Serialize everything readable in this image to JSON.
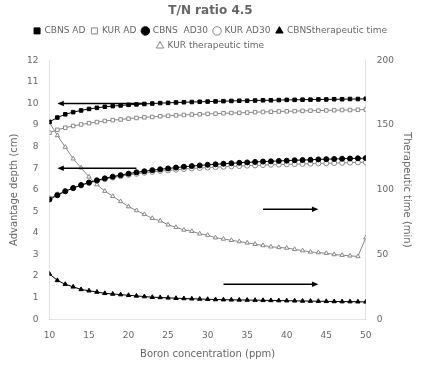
{
  "chart_data": {
    "type": "line",
    "title": "T/N ratio 4.5",
    "x_label": "Boron concentration (ppm)",
    "y_label": "Advantage depth (cm)",
    "y2_label": "Therapeutic time (min)",
    "x": [
      10,
      11,
      12,
      13,
      14,
      15,
      16,
      17,
      18,
      19,
      20,
      21,
      22,
      23,
      24,
      25,
      26,
      27,
      28,
      29,
      30,
      31,
      32,
      33,
      34,
      35,
      36,
      37,
      38,
      39,
      40,
      41,
      42,
      43,
      44,
      45,
      46,
      47,
      48,
      49,
      50
    ],
    "series": [
      {
        "name": "CBNS AD",
        "color": "#000000",
        "marker": "square",
        "axis": "y",
        "values": [
          9.15,
          9.35,
          9.5,
          9.6,
          9.68,
          9.75,
          9.8,
          9.85,
          9.88,
          9.91,
          9.94,
          9.96,
          9.98,
          10.0,
          10.02,
          10.03,
          10.05,
          10.06,
          10.07,
          10.08,
          10.09,
          10.1,
          10.11,
          10.12,
          10.13,
          10.13,
          10.14,
          10.15,
          10.15,
          10.16,
          10.17,
          10.17,
          10.18,
          10.18,
          10.19,
          10.19,
          10.2,
          10.2,
          10.21,
          10.21,
          10.22
        ]
      },
      {
        "name": "KUR AD",
        "color": "#888888",
        "marker": "open-square",
        "axis": "y",
        "values": [
          8.65,
          8.78,
          8.88,
          8.96,
          9.03,
          9.09,
          9.14,
          9.19,
          9.23,
          9.26,
          9.3,
          9.33,
          9.36,
          9.38,
          9.41,
          9.43,
          9.45,
          9.47,
          9.49,
          9.5,
          9.52,
          9.53,
          9.55,
          9.56,
          9.57,
          9.58,
          9.6,
          9.61,
          9.62,
          9.63,
          9.64,
          9.65,
          9.66,
          9.67,
          9.67,
          9.68,
          9.69,
          9.7,
          9.7,
          9.71,
          9.72
        ]
      },
      {
        "name": "CBNS  AD30",
        "color": "#000000",
        "marker": "circle",
        "axis": "y",
        "values": [
          5.55,
          5.75,
          5.93,
          6.08,
          6.22,
          6.34,
          6.44,
          6.53,
          6.61,
          6.68,
          6.75,
          6.81,
          6.86,
          6.91,
          6.95,
          6.99,
          7.03,
          7.07,
          7.1,
          7.13,
          7.16,
          7.18,
          7.21,
          7.23,
          7.25,
          7.27,
          7.29,
          7.31,
          7.32,
          7.34,
          7.35,
          7.37,
          7.38,
          7.39,
          7.41,
          7.42,
          7.43,
          7.44,
          7.45,
          7.46,
          7.47
        ]
      },
      {
        "name": "KUR AD30",
        "color": "#888888",
        "marker": "open-circle",
        "axis": "y",
        "values": [
          5.6,
          5.78,
          5.94,
          6.08,
          6.2,
          6.31,
          6.41,
          6.49,
          6.57,
          6.63,
          6.69,
          6.74,
          6.79,
          6.83,
          6.87,
          6.9,
          6.93,
          6.96,
          6.99,
          7.01,
          7.03,
          7.05,
          7.07,
          7.09,
          7.1,
          7.12,
          7.13,
          7.15,
          7.16,
          7.17,
          7.18,
          7.19,
          7.2,
          7.21,
          7.22,
          7.23,
          7.24,
          7.25,
          7.26,
          7.27,
          7.28
        ]
      },
      {
        "name": "CBNStherapeutic time",
        "color": "#000000",
        "marker": "triangle",
        "axis": "y2",
        "values": [
          35,
          30,
          27,
          25,
          23,
          22,
          21,
          20,
          19.5,
          19,
          18.5,
          18,
          17.5,
          17,
          16.8,
          16.5,
          16.2,
          16,
          15.8,
          15.6,
          15.4,
          15.2,
          15.1,
          15.0,
          14.9,
          14.8,
          14.7,
          14.6,
          14.5,
          14.4,
          14.3,
          14.2,
          14.1,
          14.0,
          13.9,
          13.8,
          13.7,
          13.6,
          13.6,
          13.5,
          13.4
        ]
      },
      {
        "name": "KUR therapeutic time",
        "color": "#888888",
        "marker": "open-triangle",
        "axis": "y2",
        "values": [
          152,
          142,
          133,
          124,
          117,
          110,
          104,
          99,
          95,
          91,
          87,
          84,
          81,
          78,
          76,
          73,
          71,
          69,
          68,
          66,
          65,
          63,
          62,
          61,
          60,
          59,
          58,
          57,
          56,
          55.5,
          55,
          54,
          53,
          52,
          51.5,
          51,
          50,
          49.5,
          49,
          48.5,
          63
        ]
      }
    ],
    "xlim": [
      10,
      50
    ],
    "xticks": [
      10,
      15,
      20,
      25,
      30,
      35,
      40,
      45,
      50
    ],
    "ylim": [
      0,
      12
    ],
    "yticks": [
      0,
      1,
      2,
      3,
      4,
      5,
      6,
      7,
      8,
      9,
      10,
      11,
      12
    ],
    "y2lim": [
      0,
      200
    ],
    "y2ticks": [
      0,
      50,
      100,
      150,
      200
    ],
    "arrows": [
      {
        "from": [
          22,
          10.0
        ],
        "to": [
          11,
          10.0
        ],
        "axis": "y",
        "color": "#000000"
      },
      {
        "from": [
          21,
          7.0
        ],
        "to": [
          11,
          7.0
        ],
        "axis": "y",
        "color": "#000000"
      },
      {
        "from": [
          32,
          27
        ],
        "to": [
          44,
          27
        ],
        "axis": "y2",
        "color": "#000000"
      },
      {
        "from": [
          37,
          85
        ],
        "to": [
          44,
          85
        ],
        "axis": "y2",
        "color": "#000000"
      }
    ],
    "grid": false,
    "legend": "top"
  }
}
